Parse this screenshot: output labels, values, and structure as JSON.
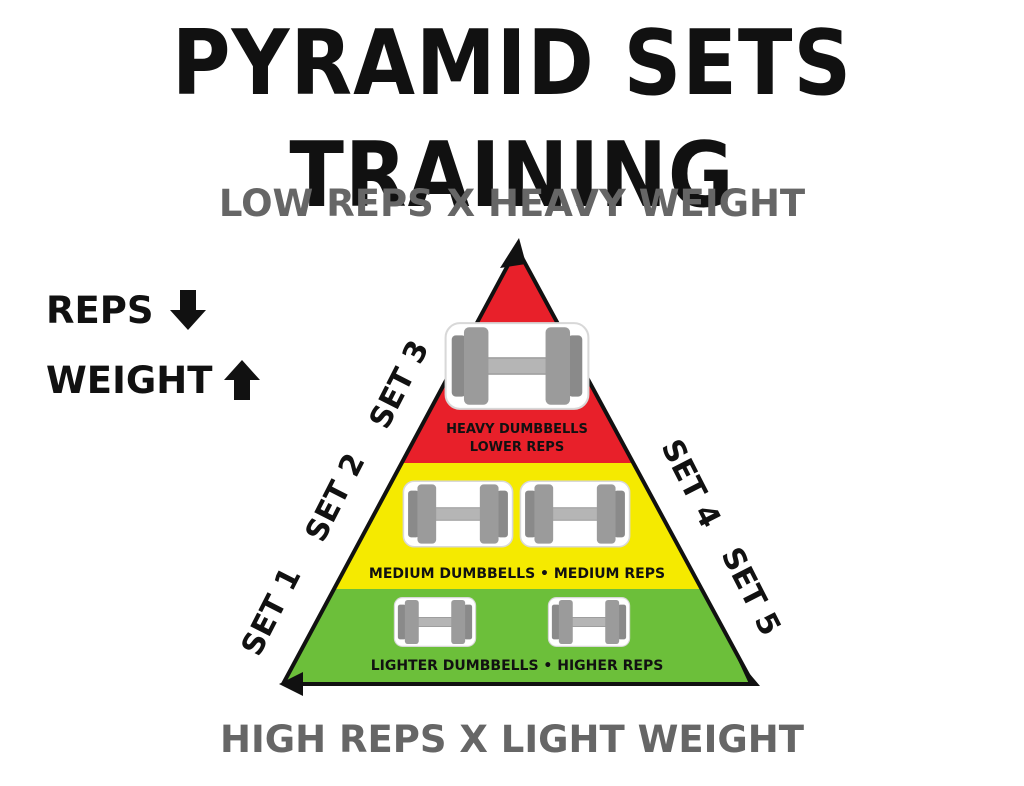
{
  "title": "PYRAMID SETS TRAINING",
  "top_label": "LOW REPS X HEAVY WEIGHT",
  "bottom_label": "HIGH REPS X LIGHT WEIGHT",
  "legend": {
    "reps": "REPS",
    "reps_arrow": "🡇",
    "weight": "WEIGHT",
    "weight_arrow": "🡅"
  },
  "bands": {
    "top": {
      "line1": "HEAVY DUMBBELLS",
      "line2": "LOWER REPS",
      "color": "#e8202a"
    },
    "middle": {
      "text": "MEDIUM DUMBBELLS • MEDIUM REPS",
      "color": "#f5ea00"
    },
    "bottom": {
      "text": "LIGHTER DUMBBELLS • HIGHER REPS",
      "color": "#6cbf3a"
    }
  },
  "sets": {
    "set1": "SET 1",
    "set2": "SET 2",
    "set3": "SET 3",
    "set4": "SET 4",
    "set5": "SET 5"
  }
}
